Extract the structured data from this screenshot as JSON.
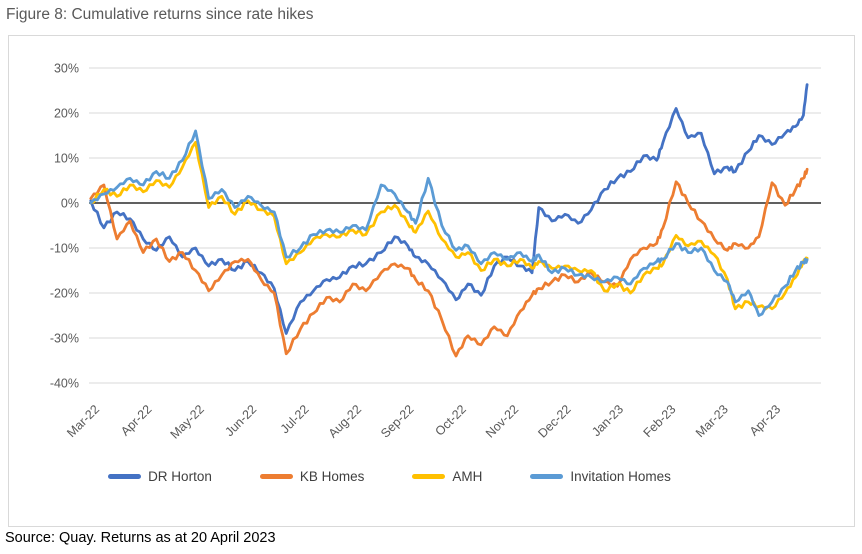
{
  "page": {
    "title": "Figure 8: Cumulative returns since rate hikes",
    "source": "Source: Quay. Returns as at 20 April 2023"
  },
  "chart_data": {
    "type": "line",
    "title": "Figure 8: Cumulative returns since rate hikes",
    "xlabel": "",
    "ylabel": "",
    "y_unit": "%",
    "ylim": [
      -40,
      30
    ],
    "grid": true,
    "legend_position": "bottom",
    "colors": {
      "grid": "#d9d9d9",
      "zero_axis": "#000000",
      "tick_text": "#595959",
      "frame_border": "#d9d9d9"
    },
    "y_ticks": [
      {
        "v": 30,
        "label": "30%"
      },
      {
        "v": 20,
        "label": "20%"
      },
      {
        "v": 10,
        "label": "10%"
      },
      {
        "v": 0,
        "label": "0%"
      },
      {
        "v": -10,
        "label": "-10%"
      },
      {
        "v": -20,
        "label": "-20%"
      },
      {
        "v": -30,
        "label": "-30%"
      },
      {
        "v": -40,
        "label": "-40%"
      }
    ],
    "x_tick_labels": [
      "Mar-22",
      "Apr-22",
      "May-22",
      "Jun-22",
      "Jul-22",
      "Aug-22",
      "Sep-22",
      "Oct-22",
      "Nov-22",
      "Dec-22",
      "Jan-23",
      "Feb-23",
      "Mar-23",
      "Apr-23"
    ],
    "x_months": [
      -0.1,
      0.15,
      0.4,
      0.65,
      0.9,
      1.15,
      1.4,
      1.65,
      1.9,
      2.15,
      2.4,
      2.65,
      2.9,
      3.15,
      3.4,
      3.63,
      3.9,
      4.15,
      4.4,
      4.65,
      4.9,
      5.15,
      5.44,
      5.7,
      5.95,
      6.1,
      6.34,
      6.6,
      6.87,
      7.1,
      7.35,
      7.6,
      7.85,
      8.1,
      8.32,
      8.45,
      8.7,
      8.95,
      9.2,
      9.45,
      9.7,
      9.95,
      10.2,
      10.45,
      10.7,
      10.82,
      11.07,
      11.3,
      11.55,
      11.8,
      12.05,
      12.2,
      12.45,
      12.65,
      12.9,
      13.15,
      13.35,
      13.5,
      13.57
    ],
    "series": [
      {
        "name": "DR Horton",
        "color": "#4472C4",
        "values": [
          0.5,
          -5.5,
          -2,
          -3.5,
          -8,
          -10.5,
          -7.5,
          -12,
          -10,
          -14,
          -12.5,
          -15,
          -13,
          -15.5,
          -19,
          -29,
          -22,
          -19.5,
          -17,
          -16.5,
          -14,
          -13.5,
          -11,
          -7.5,
          -9.5,
          -12,
          -13.5,
          -17,
          -21.5,
          -18,
          -20.5,
          -14,
          -12,
          -14,
          -15.5,
          -1,
          -4,
          -2.5,
          -4.5,
          -1.5,
          3,
          5.5,
          7,
          10.5,
          9.5,
          13.5,
          21,
          14.5,
          15.5,
          6.5,
          8,
          7,
          11.5,
          15,
          13,
          15.5,
          17,
          19.5,
          26.3
        ]
      },
      {
        "name": "KB Homes",
        "color": "#ED7D31",
        "values": [
          1,
          4,
          -8,
          -4,
          -11,
          -8,
          -13,
          -11,
          -15,
          -19.5,
          -16,
          -13,
          -12.5,
          -17,
          -20,
          -33.5,
          -28,
          -24.5,
          -21,
          -22,
          -18,
          -19.5,
          -15.5,
          -13.5,
          -14.5,
          -17,
          -19.5,
          -26,
          -34,
          -29.5,
          -31.5,
          -27.5,
          -29.5,
          -24,
          -20.5,
          -19,
          -17.5,
          -16,
          -17.5,
          -15.5,
          -17.5,
          -18.5,
          -12.5,
          -10,
          -9,
          -5.5,
          4.7,
          0,
          -4,
          -8,
          -10.5,
          -9,
          -10,
          -7.5,
          4.5,
          -0.5,
          3,
          5.5,
          7.5
        ]
      },
      {
        "name": "AMH",
        "color": "#FFC000",
        "values": [
          0,
          3,
          1.5,
          4,
          2.5,
          5,
          3.5,
          8,
          13.5,
          -1,
          1.5,
          -2.5,
          0.5,
          -1.5,
          -3,
          -13.5,
          -11,
          -8,
          -7,
          -7.5,
          -6,
          -7,
          -2,
          -0.5,
          -4.5,
          -6.5,
          -1.8,
          -8,
          -12,
          -11,
          -15,
          -12.5,
          -14,
          -12.5,
          -14.5,
          -13,
          -14.5,
          -14,
          -15,
          -15,
          -19.5,
          -18,
          -20,
          -16,
          -14.5,
          -13.5,
          -7.2,
          -9.5,
          -8.5,
          -11.5,
          -17,
          -23.5,
          -22,
          -23,
          -23.5,
          -20,
          -16.5,
          -13,
          -12.3
        ]
      },
      {
        "name": "Invitation Homes",
        "color": "#5B9BD5",
        "values": [
          0,
          2,
          3.5,
          5.5,
          4,
          7,
          5.5,
          9.5,
          16,
          1,
          3,
          -1,
          1.5,
          -0.5,
          -2,
          -12,
          -10,
          -7,
          -6,
          -6.5,
          -5,
          -6,
          4,
          2,
          -2,
          -4.5,
          5.5,
          -5,
          -10.5,
          -9.5,
          -13.5,
          -11,
          -12.5,
          -11,
          -13,
          -11.5,
          -15.5,
          -14.5,
          -16,
          -16.5,
          -17.5,
          -16.5,
          -18,
          -14.5,
          -13,
          -12.5,
          -9,
          -11,
          -10,
          -15,
          -17.5,
          -22,
          -19.5,
          -25,
          -22,
          -18.5,
          -15,
          -13.2,
          -12.6
        ]
      }
    ]
  }
}
